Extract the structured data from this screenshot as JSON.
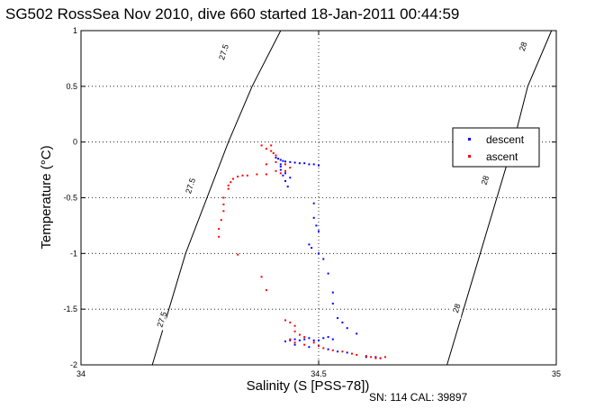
{
  "chart_data": {
    "type": "scatter",
    "title": "SG502 RossSea Nov 2010, dive 660 started 18-Jan-2011 00:44:59",
    "xlabel": "Salinity (S [PSS-78])",
    "ylabel": "Temperature (°C)",
    "xlim": [
      34,
      35
    ],
    "ylim": [
      -2,
      1
    ],
    "x_ticks": [
      "34",
      "34.5",
      "35"
    ],
    "y_ticks": [
      "1",
      "0.5",
      "0",
      "-0.5",
      "-1",
      "-1.5",
      "-2"
    ],
    "grid": "dotted",
    "legend_position": "right",
    "footer": "SN: 114  CAL: 39897",
    "density_contours": [
      {
        "label": "27.5",
        "points": [
          [
            34.15,
            -2
          ],
          [
            34.22,
            -1.0
          ],
          [
            34.31,
            0
          ],
          [
            34.36,
            0.5
          ],
          [
            34.42,
            1
          ]
        ],
        "label_positions": [
          [
            34.17,
            -1.6
          ],
          [
            34.23,
            -0.4
          ],
          [
            34.3,
            0.8
          ]
        ]
      },
      {
        "label": "28",
        "points": [
          [
            34.77,
            -2
          ],
          [
            34.84,
            -1.0
          ],
          [
            34.91,
            0
          ],
          [
            34.94,
            0.5
          ],
          [
            34.99,
            1
          ]
        ],
        "label_positions": [
          [
            34.79,
            -1.5
          ],
          [
            34.85,
            -0.35
          ],
          [
            34.93,
            0.85
          ]
        ]
      }
    ],
    "series": [
      {
        "name": "descent",
        "color": "#0000ff",
        "points": [
          [
            34.41,
            -0.14
          ],
          [
            34.415,
            -0.15
          ],
          [
            34.42,
            -0.16
          ],
          [
            34.425,
            -0.17
          ],
          [
            34.43,
            -0.175
          ],
          [
            34.44,
            -0.18
          ],
          [
            34.45,
            -0.185
          ],
          [
            34.46,
            -0.19
          ],
          [
            34.47,
            -0.19
          ],
          [
            34.48,
            -0.2
          ],
          [
            34.49,
            -0.2
          ],
          [
            34.5,
            -0.21
          ],
          [
            34.42,
            -0.2
          ],
          [
            34.42,
            -0.25
          ],
          [
            34.425,
            -0.3
          ],
          [
            34.43,
            -0.35
          ],
          [
            34.435,
            -0.4
          ],
          [
            34.42,
            -0.22
          ],
          [
            34.43,
            -0.28
          ],
          [
            34.44,
            -0.32
          ],
          [
            34.49,
            -0.55
          ],
          [
            34.49,
            -0.68
          ],
          [
            34.495,
            -0.75
          ],
          [
            34.5,
            -0.8
          ],
          [
            34.48,
            -0.92
          ],
          [
            34.485,
            -0.95
          ],
          [
            34.5,
            -1.0
          ],
          [
            34.51,
            -1.05
          ],
          [
            34.52,
            -1.18
          ],
          [
            34.53,
            -1.35
          ],
          [
            34.53,
            -1.45
          ],
          [
            34.54,
            -1.58
          ],
          [
            34.55,
            -1.62
          ],
          [
            34.56,
            -1.67
          ],
          [
            34.58,
            -1.72
          ],
          [
            34.52,
            -1.75
          ],
          [
            34.53,
            -1.77
          ],
          [
            34.51,
            -1.76
          ],
          [
            34.5,
            -1.78
          ],
          [
            34.49,
            -1.78
          ],
          [
            34.48,
            -1.76
          ],
          [
            34.47,
            -1.77
          ],
          [
            34.46,
            -1.78
          ],
          [
            34.45,
            -1.77
          ],
          [
            34.44,
            -1.78
          ],
          [
            34.43,
            -1.79
          ],
          [
            34.45,
            -1.82
          ],
          [
            34.48,
            -1.84
          ],
          [
            34.52,
            -1.86
          ],
          [
            34.54,
            -1.88
          ],
          [
            34.56,
            -1.89
          ],
          [
            34.6,
            -1.93
          ],
          [
            34.62,
            -1.93
          ],
          [
            34.63,
            -1.94
          ]
        ]
      },
      {
        "name": "ascent",
        "color": "#ff0000",
        "points": [
          [
            34.38,
            -0.03
          ],
          [
            34.4,
            -0.03
          ],
          [
            34.39,
            -0.06
          ],
          [
            34.4,
            -0.08
          ],
          [
            34.405,
            -0.1
          ],
          [
            34.41,
            -0.12
          ],
          [
            34.39,
            -0.2
          ],
          [
            34.41,
            -0.18
          ],
          [
            34.43,
            -0.2
          ],
          [
            34.44,
            -0.23
          ],
          [
            34.43,
            -0.26
          ],
          [
            34.42,
            -0.28
          ],
          [
            34.41,
            -0.26
          ],
          [
            34.39,
            -0.29
          ],
          [
            34.37,
            -0.29
          ],
          [
            34.35,
            -0.3
          ],
          [
            34.34,
            -0.3
          ],
          [
            34.33,
            -0.31
          ],
          [
            34.32,
            -0.33
          ],
          [
            34.315,
            -0.36
          ],
          [
            34.31,
            -0.39
          ],
          [
            34.31,
            -0.42
          ],
          [
            34.3,
            -0.5
          ],
          [
            34.3,
            -0.56
          ],
          [
            34.3,
            -0.62
          ],
          [
            34.295,
            -0.7
          ],
          [
            34.29,
            -0.78
          ],
          [
            34.29,
            -0.85
          ],
          [
            34.33,
            -1.01
          ],
          [
            34.38,
            -1.21
          ],
          [
            34.39,
            -1.33
          ],
          [
            34.43,
            -1.6
          ],
          [
            34.44,
            -1.62
          ],
          [
            34.45,
            -1.65
          ],
          [
            34.45,
            -1.7
          ],
          [
            34.46,
            -1.73
          ],
          [
            34.47,
            -1.75
          ],
          [
            34.44,
            -1.77
          ],
          [
            34.45,
            -1.8
          ],
          [
            34.47,
            -1.82
          ],
          [
            34.49,
            -1.8
          ],
          [
            34.5,
            -1.83
          ],
          [
            34.51,
            -1.85
          ],
          [
            34.53,
            -1.87
          ],
          [
            34.55,
            -1.88
          ],
          [
            34.57,
            -1.9
          ],
          [
            34.58,
            -1.91
          ],
          [
            34.6,
            -1.92
          ],
          [
            34.61,
            -1.93
          ],
          [
            34.62,
            -1.94
          ],
          [
            34.63,
            -1.94
          ],
          [
            34.64,
            -1.93
          ]
        ]
      }
    ]
  }
}
